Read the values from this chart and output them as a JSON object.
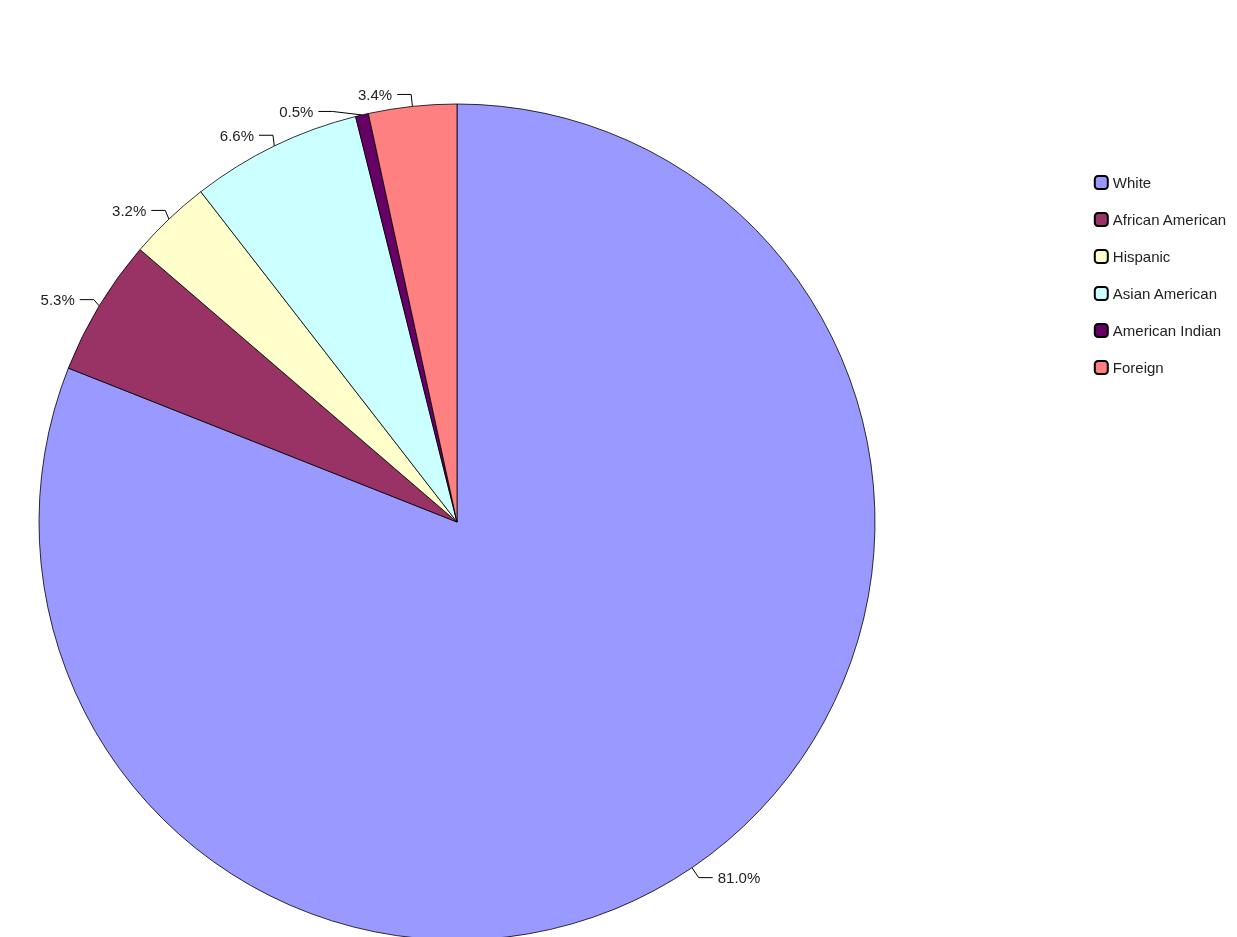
{
  "chart_data": {
    "type": "pie",
    "categories": [
      "White",
      "African American",
      "Hispanic",
      "Asian American",
      "American Indian",
      "Foreign"
    ],
    "values": [
      81.0,
      5.3,
      3.2,
      6.6,
      0.5,
      3.4
    ],
    "colors": [
      "#9999ff",
      "#993366",
      "#ffffcc",
      "#ccffff",
      "#660066",
      "#ff8080"
    ],
    "value_labels": [
      "81.0%",
      "5.3%",
      "3.2%",
      "6.6%",
      "0.5%",
      "3.4%"
    ],
    "legend": "right"
  }
}
